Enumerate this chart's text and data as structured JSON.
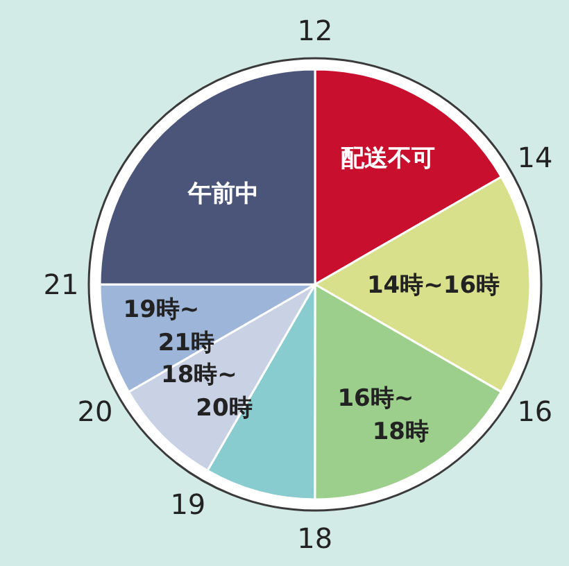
{
  "chart_data": {
    "type": "pie",
    "categories": [
      "配送不可",
      "14時~16時",
      "16時~18時",
      null,
      "18時~20時",
      "19時~21時",
      "午前中"
    ],
    "values": [
      16.67,
      16.67,
      16.67,
      8.33,
      8.33,
      8.33,
      25
    ],
    "colors": [
      "#c8102e",
      "#d9e08c",
      "#9dcf8c",
      "#88ccd0",
      "#c9d1e4",
      "#9db5d9",
      "#4b5479"
    ],
    "annotations": [
      "12",
      "14",
      "16",
      "18",
      "19",
      "20",
      "21"
    ]
  }
}
